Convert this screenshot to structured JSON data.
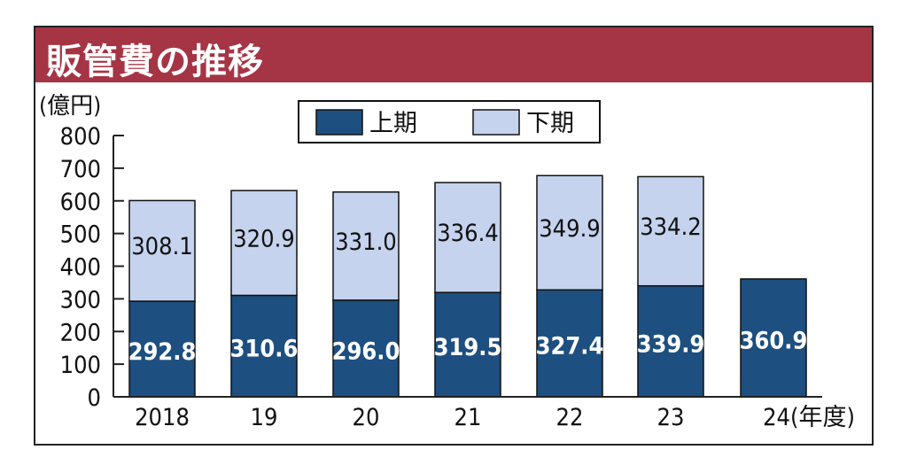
{
  "title": "販管費の推移",
  "colors": {
    "title_bg": "#a53445",
    "first_half": "#1d4f80",
    "second_half": "#c5d3ee",
    "axis": "#222222"
  },
  "chart_data": {
    "type": "bar",
    "stacked": true,
    "title": "販管費の推移",
    "ylabel": "(億円)",
    "xlabel_suffix": "(年度)",
    "categories": [
      "2018",
      "19",
      "20",
      "21",
      "22",
      "23",
      "24"
    ],
    "series": [
      {
        "name": "上期",
        "values": [
          292.8,
          310.6,
          296.0,
          319.5,
          327.4,
          339.9,
          360.9
        ]
      },
      {
        "name": "下期",
        "values": [
          308.1,
          320.9,
          331.0,
          336.4,
          349.9,
          334.2,
          null
        ]
      }
    ],
    "value_labels": {
      "first_half": [
        "292.8",
        "310.6",
        "296.0",
        "319.5",
        "327.4",
        "339.9",
        "360.9"
      ],
      "second_half": [
        "308.1",
        "320.9",
        "331.0",
        "336.4",
        "349.9",
        "334.2",
        ""
      ]
    },
    "ylim": [
      0,
      800
    ],
    "yticks": [
      "0",
      "100",
      "200",
      "300",
      "400",
      "500",
      "600",
      "700",
      "800"
    ],
    "legend": {
      "placement": "top-center",
      "items": [
        "上期",
        "下期"
      ]
    },
    "grid": false
  }
}
